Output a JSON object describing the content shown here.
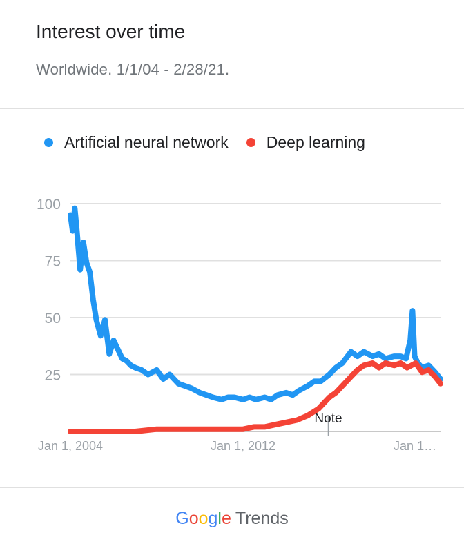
{
  "header": {
    "title": "Interest over time",
    "subtitle": "Worldwide. 1/1/04 - 2/28/21."
  },
  "footer": {
    "brand": "Google",
    "product": "Trends"
  },
  "colors": {
    "series1": "#2196F3",
    "series2": "#F44336",
    "grid": "#e0e0e0",
    "tick": "#9aa0a6"
  },
  "chart_data": {
    "type": "line",
    "legend": [
      "Artificial neural network",
      "Deep learning"
    ],
    "ylim": [
      0,
      100
    ],
    "yticks": [
      25,
      50,
      75,
      100
    ],
    "xlim": [
      2004.0,
      2021.15
    ],
    "xticks": [
      {
        "value": 2004,
        "label": "Jan 1, 2004"
      },
      {
        "value": 2012,
        "label": "Jan 1, 2012"
      },
      {
        "value": 2020,
        "label": "Jan 1…"
      }
    ],
    "annotation": {
      "x": 2015.95,
      "label": "Note"
    },
    "series": [
      {
        "name": "Artificial neural network",
        "x": [
          2004.0,
          2004.1,
          2004.2,
          2004.3,
          2004.45,
          2004.6,
          2004.75,
          2004.9,
          2005.05,
          2005.2,
          2005.4,
          2005.6,
          2005.8,
          2006.0,
          2006.2,
          2006.4,
          2006.6,
          2006.8,
          2007.0,
          2007.3,
          2007.6,
          2008.0,
          2008.3,
          2008.6,
          2009.0,
          2009.3,
          2009.6,
          2010.0,
          2010.3,
          2010.6,
          2011.0,
          2011.3,
          2011.6,
          2012.0,
          2012.3,
          2012.6,
          2013.0,
          2013.3,
          2013.6,
          2014.0,
          2014.3,
          2014.6,
          2015.0,
          2015.3,
          2015.6,
          2016.0,
          2016.3,
          2016.6,
          2017.0,
          2017.3,
          2017.6,
          2018.0,
          2018.3,
          2018.6,
          2019.0,
          2019.3,
          2019.55,
          2019.75,
          2019.85,
          2019.95,
          2020.1,
          2020.3,
          2020.6,
          2020.9,
          2021.15
        ],
        "values": [
          95,
          88,
          98,
          88,
          71,
          83,
          74,
          70,
          58,
          49,
          42,
          49,
          34,
          40,
          36,
          32,
          31,
          29,
          28,
          27,
          25,
          27,
          23,
          25,
          21,
          20,
          19,
          17,
          16,
          15,
          14,
          15,
          15,
          14,
          15,
          14,
          15,
          14,
          16,
          17,
          16,
          18,
          20,
          22,
          22,
          25,
          28,
          30,
          35,
          33,
          35,
          33,
          34,
          32,
          33,
          33,
          32,
          40,
          53,
          33,
          30,
          28,
          29,
          26,
          23
        ]
      },
      {
        "name": "Deep learning",
        "x": [
          2004.0,
          2005.0,
          2006.0,
          2007.0,
          2008.0,
          2009.0,
          2010.0,
          2011.0,
          2012.0,
          2012.5,
          2013.0,
          2013.5,
          2014.0,
          2014.5,
          2015.0,
          2015.5,
          2016.0,
          2016.3,
          2016.6,
          2017.0,
          2017.3,
          2017.6,
          2018.0,
          2018.3,
          2018.6,
          2019.0,
          2019.3,
          2019.6,
          2020.0,
          2020.3,
          2020.6,
          2020.9,
          2021.15
        ],
        "values": [
          0,
          0,
          0,
          0,
          1,
          1,
          1,
          1,
          1,
          2,
          2,
          3,
          4,
          5,
          7,
          10,
          15,
          17,
          20,
          24,
          27,
          29,
          30,
          28,
          30,
          29,
          30,
          28,
          30,
          26,
          27,
          24,
          21
        ]
      }
    ]
  }
}
